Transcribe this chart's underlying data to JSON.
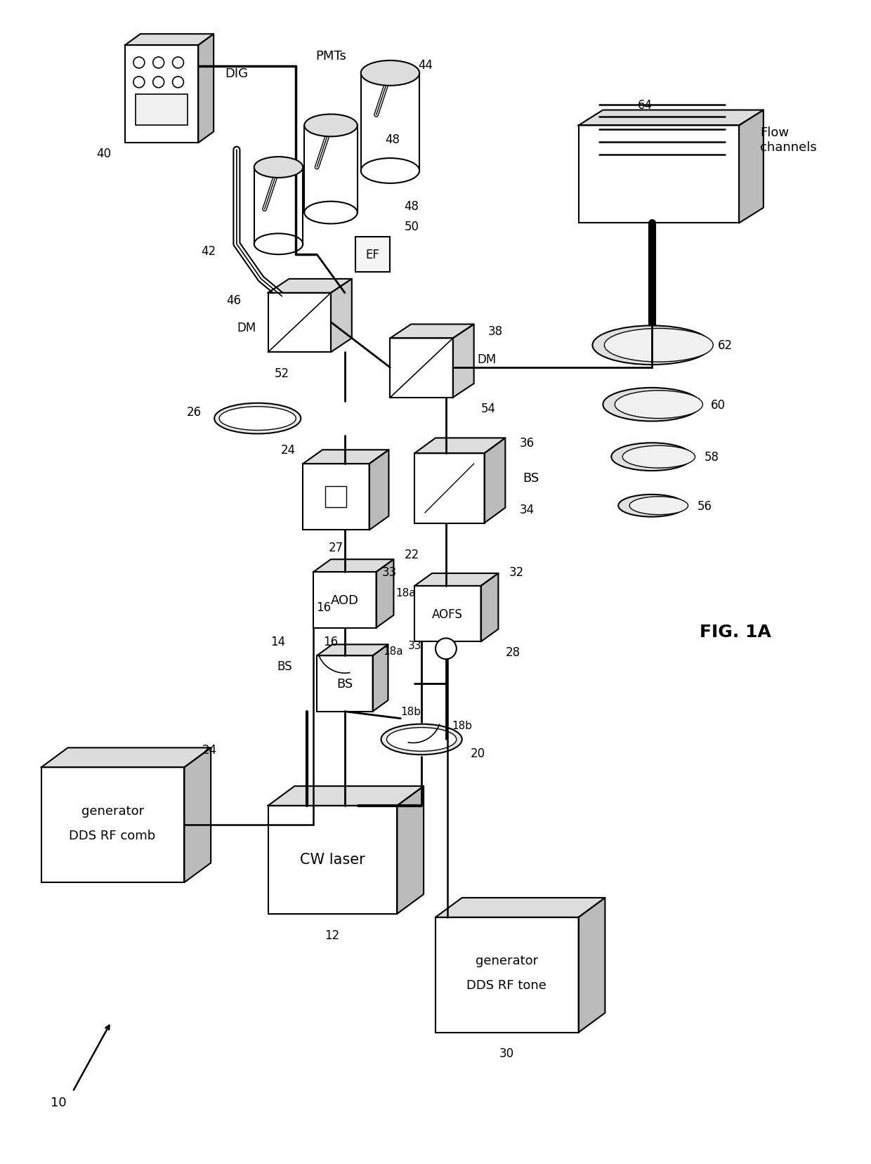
{
  "title": "FIG. 1A",
  "background_color": "#ffffff",
  "line_color": "#000000",
  "fig_width": 12.4,
  "fig_height": 16.58,
  "dpi": 100,
  "components": {
    "DIG": {
      "label": "DIG",
      "ref": "40"
    },
    "PMTs": {
      "label": "PMTs",
      "ref": "44"
    },
    "EF": {
      "label": "EF",
      "ref": "48,50"
    },
    "DM_left": {
      "label": "DM",
      "ref": "46,52"
    },
    "DM_right": {
      "label": "DM",
      "ref": "38,54"
    },
    "AOD": {
      "label": "AOD",
      "ref": "22"
    },
    "AOFS": {
      "label": "AOFS",
      "ref": "32"
    },
    "BS_left": {
      "label": "BS",
      "ref": "14"
    },
    "BS_right": {
      "label": "BS",
      "ref": "36"
    },
    "CW_laser": {
      "label": "CW laser",
      "ref": "12"
    },
    "DDS_comb": {
      "label": "DDS RF comb\ngenerator",
      "ref": "24"
    },
    "DDS_tone": {
      "label": "DDS RF tone\ngenerator",
      "ref": "30"
    },
    "flow_channels": {
      "label": "Flow\nchannels"
    },
    "system_ref": "10"
  }
}
